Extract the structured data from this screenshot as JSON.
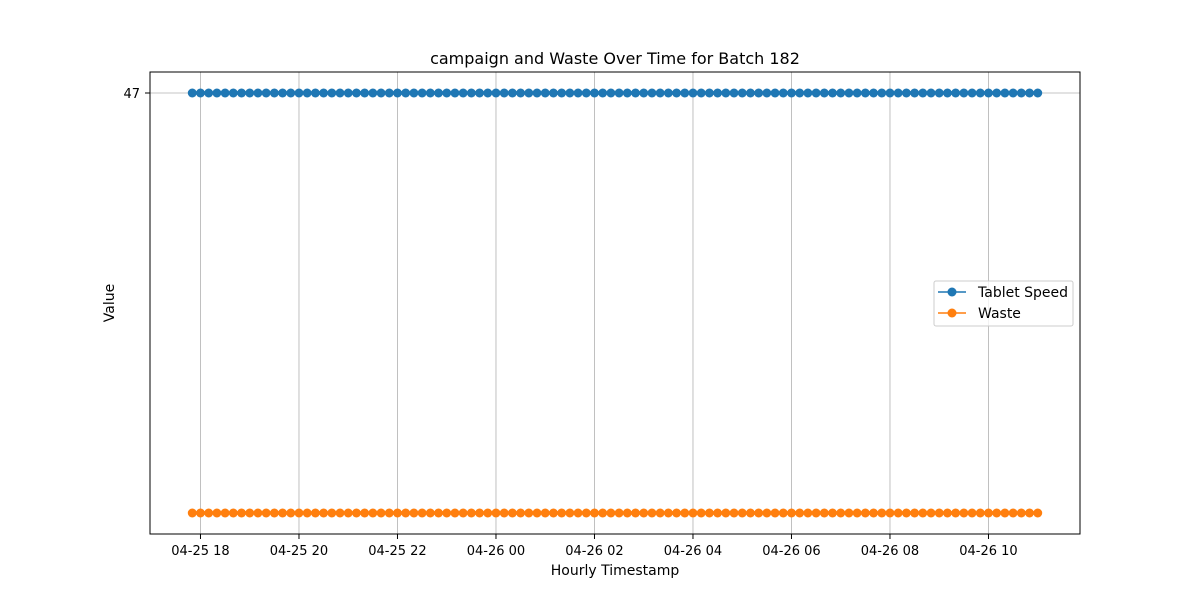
{
  "chart_data": {
    "type": "line",
    "title": "campaign and Waste Over Time for Batch 182",
    "xlabel": "Hourly Timestamp",
    "ylabel": "Value",
    "x_start": "2025-04-25 17:50",
    "x_step_minutes": 10,
    "x_count": 104,
    "x_ticks": [
      {
        "label": "04-25 18",
        "time": "2025-04-25 18:00"
      },
      {
        "label": "04-25 20",
        "time": "2025-04-25 20:00"
      },
      {
        "label": "04-25 22",
        "time": "2025-04-25 22:00"
      },
      {
        "label": "04-26 00",
        "time": "2025-04-26 00:00"
      },
      {
        "label": "04-26 02",
        "time": "2025-04-26 02:00"
      },
      {
        "label": "04-26 04",
        "time": "2025-04-26 04:00"
      },
      {
        "label": "04-26 06",
        "time": "2025-04-26 06:00"
      },
      {
        "label": "04-26 08",
        "time": "2025-04-26 08:00"
      },
      {
        "label": "04-26 10",
        "time": "2025-04-26 10:00"
      }
    ],
    "y_ticks": [
      {
        "label": "47",
        "value": 47
      }
    ],
    "series": [
      {
        "name": "Tablet Speed",
        "color": "#1f77b4",
        "value": 47
      },
      {
        "name": "Waste",
        "color": "#ff7f0e",
        "value": 0
      }
    ],
    "grid": true,
    "legend_position": "center-right"
  }
}
